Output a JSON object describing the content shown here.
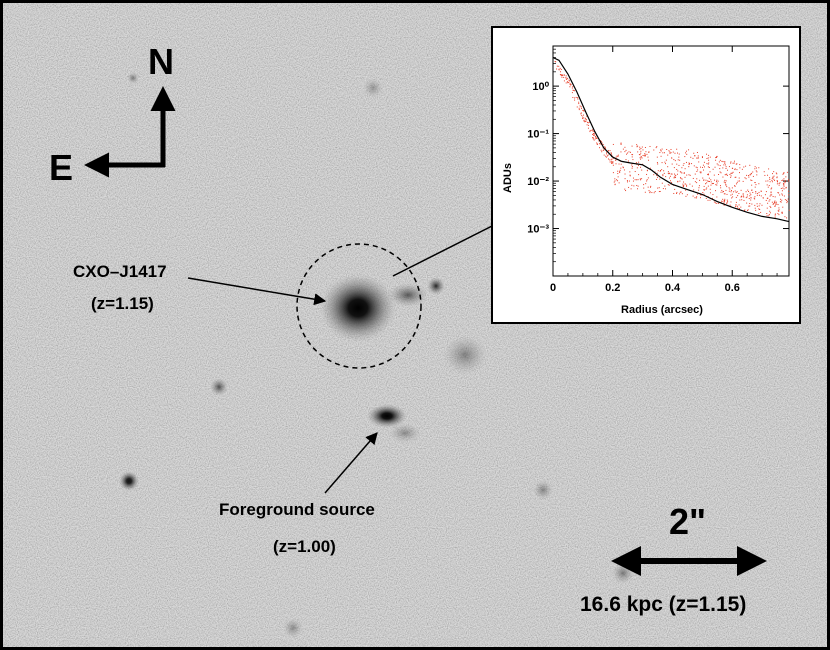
{
  "compass": {
    "north": "N",
    "east": "E"
  },
  "source": {
    "name": "CXO–J1417",
    "redshift": "(z=1.15)"
  },
  "foreground": {
    "name": "Foreground source",
    "redshift": "(z=1.00)"
  },
  "scale_bar": {
    "angular": "2\"",
    "physical": "16.6 kpc (z=1.15)"
  },
  "chart_data": {
    "type": "scatter",
    "xlabel": "Radius (arcsec)",
    "ylabel": "ADUs",
    "xlim": [
      0,
      0.79
    ],
    "ylim": [
      0.0001,
      7
    ],
    "yscale": "log",
    "xticks": [
      "0",
      "0.2",
      "0.4",
      "0.6"
    ],
    "yticks": [
      "10⁻³",
      "10⁻²",
      "10⁻¹",
      "10⁰"
    ],
    "series": [
      {
        "style": "points",
        "color": "#e8412c",
        "x": [
          0.0,
          0.03,
          0.06,
          0.09,
          0.12,
          0.15,
          0.18,
          0.2,
          0.22,
          0.25,
          0.3,
          0.35,
          0.4,
          0.45,
          0.5,
          0.55,
          0.6,
          0.65,
          0.7,
          0.75,
          0.79
        ],
        "y": [
          4.0,
          2.0,
          0.9,
          0.35,
          0.15,
          0.07,
          0.04,
          0.03,
          0.025,
          0.022,
          0.021,
          0.02,
          0.019,
          0.017,
          0.015,
          0.012,
          0.01,
          0.008,
          0.007,
          0.006,
          0.006
        ]
      },
      {
        "style": "line",
        "color": "#000000",
        "x": [
          0.0,
          0.02,
          0.05,
          0.08,
          0.11,
          0.14,
          0.17,
          0.2,
          0.23,
          0.26,
          0.3,
          0.33,
          0.36,
          0.4,
          0.45,
          0.5,
          0.55,
          0.6,
          0.65,
          0.7,
          0.75,
          0.79
        ],
        "y": [
          4.0,
          3.5,
          1.8,
          0.75,
          0.28,
          0.11,
          0.05,
          0.032,
          0.026,
          0.024,
          0.022,
          0.017,
          0.012,
          0.0085,
          0.0066,
          0.0052,
          0.0037,
          0.0028,
          0.0022,
          0.0018,
          0.0016,
          0.0014
        ]
      }
    ]
  }
}
